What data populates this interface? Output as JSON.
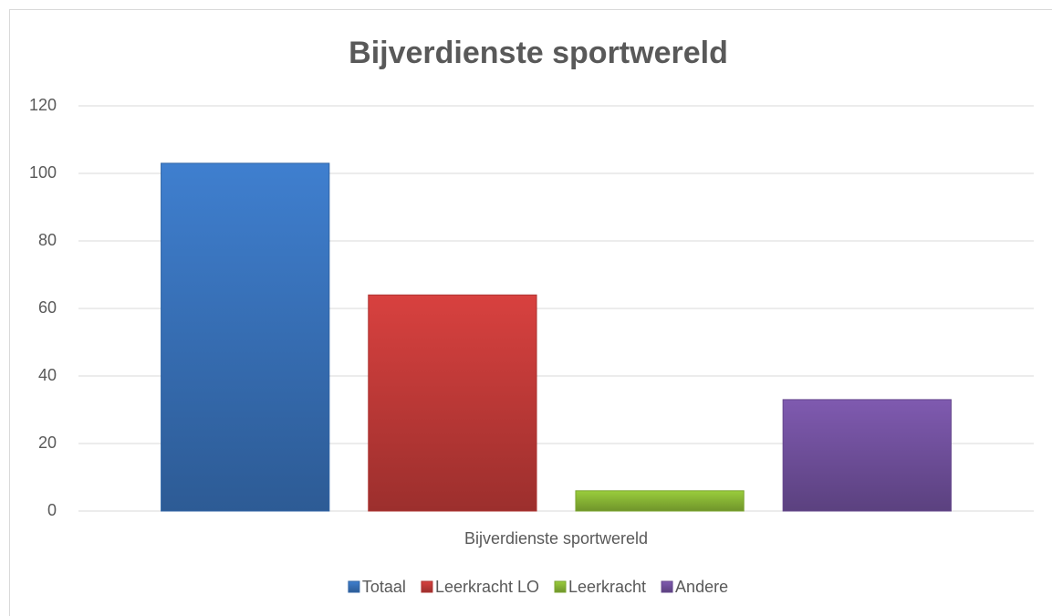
{
  "chart_data": {
    "type": "bar",
    "title": "Bijverdienste sportwereld",
    "categories": [
      "Bijverdienste sportwereld"
    ],
    "series": [
      {
        "name": "Totaal",
        "color": "#3f7fcf",
        "values": [
          103
        ]
      },
      {
        "name": "Leerkracht LO",
        "color": "#d8413f",
        "values": [
          64
        ]
      },
      {
        "name": "Leerkracht",
        "color": "#9acd3c",
        "values": [
          6
        ]
      },
      {
        "name": "Andere",
        "color": "#7f5ab0",
        "values": [
          33
        ]
      }
    ],
    "ylim": [
      0,
      120
    ],
    "yticks": [
      0,
      20,
      40,
      60,
      80,
      100,
      120
    ],
    "grid": true,
    "legend": "bottom"
  }
}
